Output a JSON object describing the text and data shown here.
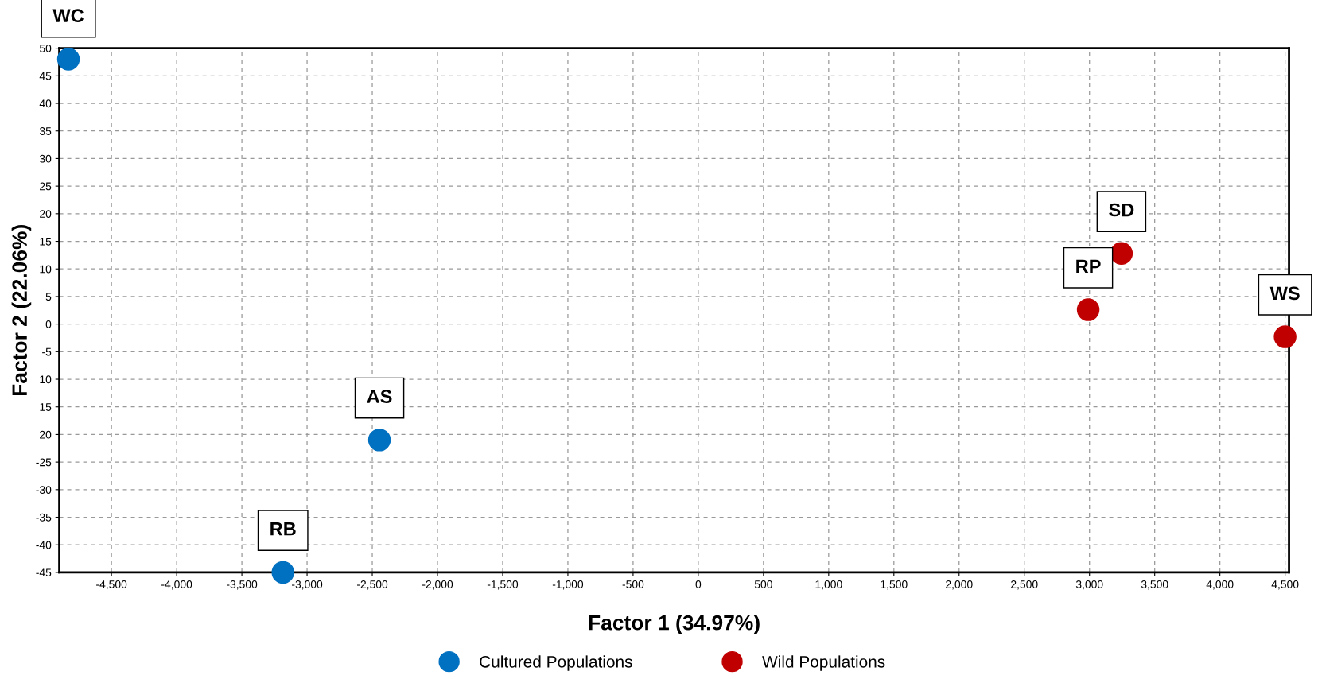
{
  "chart_data": {
    "type": "scatter",
    "xlabel": "Factor 1 (34.97%)",
    "ylabel": "Factor 2 (22.06%)",
    "series": [
      {
        "name": "Cultured Populations",
        "color": "#0070c0",
        "x": [
          -4830,
          -2445,
          -3185
        ],
        "values": [
          48,
          -21,
          -45
        ]
      },
      {
        "name": "Wild Populations",
        "color": "#c00000",
        "x": [
          2990,
          3245,
          4500
        ],
        "values": [
          2.6,
          12.8,
          -2.3
        ]
      }
    ],
    "annotations": [
      {
        "text": "WC",
        "x": -4830,
        "y": 48
      },
      {
        "text": "AS",
        "x": -2445,
        "y": -21
      },
      {
        "text": "RB",
        "x": -3185,
        "y": -45
      },
      {
        "text": "RP",
        "x": 2990,
        "y": 2.6
      },
      {
        "text": "SD",
        "x": 3245,
        "y": 12.8
      },
      {
        "text": "WS",
        "x": 4500,
        "y": -2.3
      }
    ],
    "xlim": [
      -4900,
      4530
    ],
    "ylim": [
      -45,
      50
    ],
    "xticks": [
      {
        "value": -4500,
        "label": "-4,500"
      },
      {
        "value": -4000,
        "label": "-4,000"
      },
      {
        "value": -3500,
        "label": "-3,500"
      },
      {
        "value": -3000,
        "label": "-3,000"
      },
      {
        "value": -2500,
        "label": "-2,500"
      },
      {
        "value": -2000,
        "label": "-2,000"
      },
      {
        "value": -1500,
        "label": "-1,500"
      },
      {
        "value": -1000,
        "label": "-1,000"
      },
      -500,
      0,
      500,
      {
        "value": 1000,
        "label": "1,000"
      },
      {
        "value": 1500,
        "label": "1,500"
      },
      {
        "value": 2000,
        "label": "2,000"
      },
      {
        "value": 2500,
        "label": "2,500"
      },
      {
        "value": 3000,
        "label": "3,000"
      },
      {
        "value": 3500,
        "label": "3,500"
      },
      {
        "value": 4000,
        "label": "4,000"
      },
      {
        "value": 4500,
        "label": "4,500"
      }
    ],
    "yticks": [
      -45,
      -40,
      -35,
      -30,
      -25,
      {
        "value": -20,
        "label": "20"
      },
      {
        "value": -15,
        "label": "15"
      },
      {
        "value": -10,
        "label": "10"
      },
      -5,
      0,
      5,
      10,
      15,
      20,
      25,
      30,
      35,
      40,
      45,
      50
    ],
    "grid": true,
    "legend": "bottom",
    "marker": "circle"
  }
}
